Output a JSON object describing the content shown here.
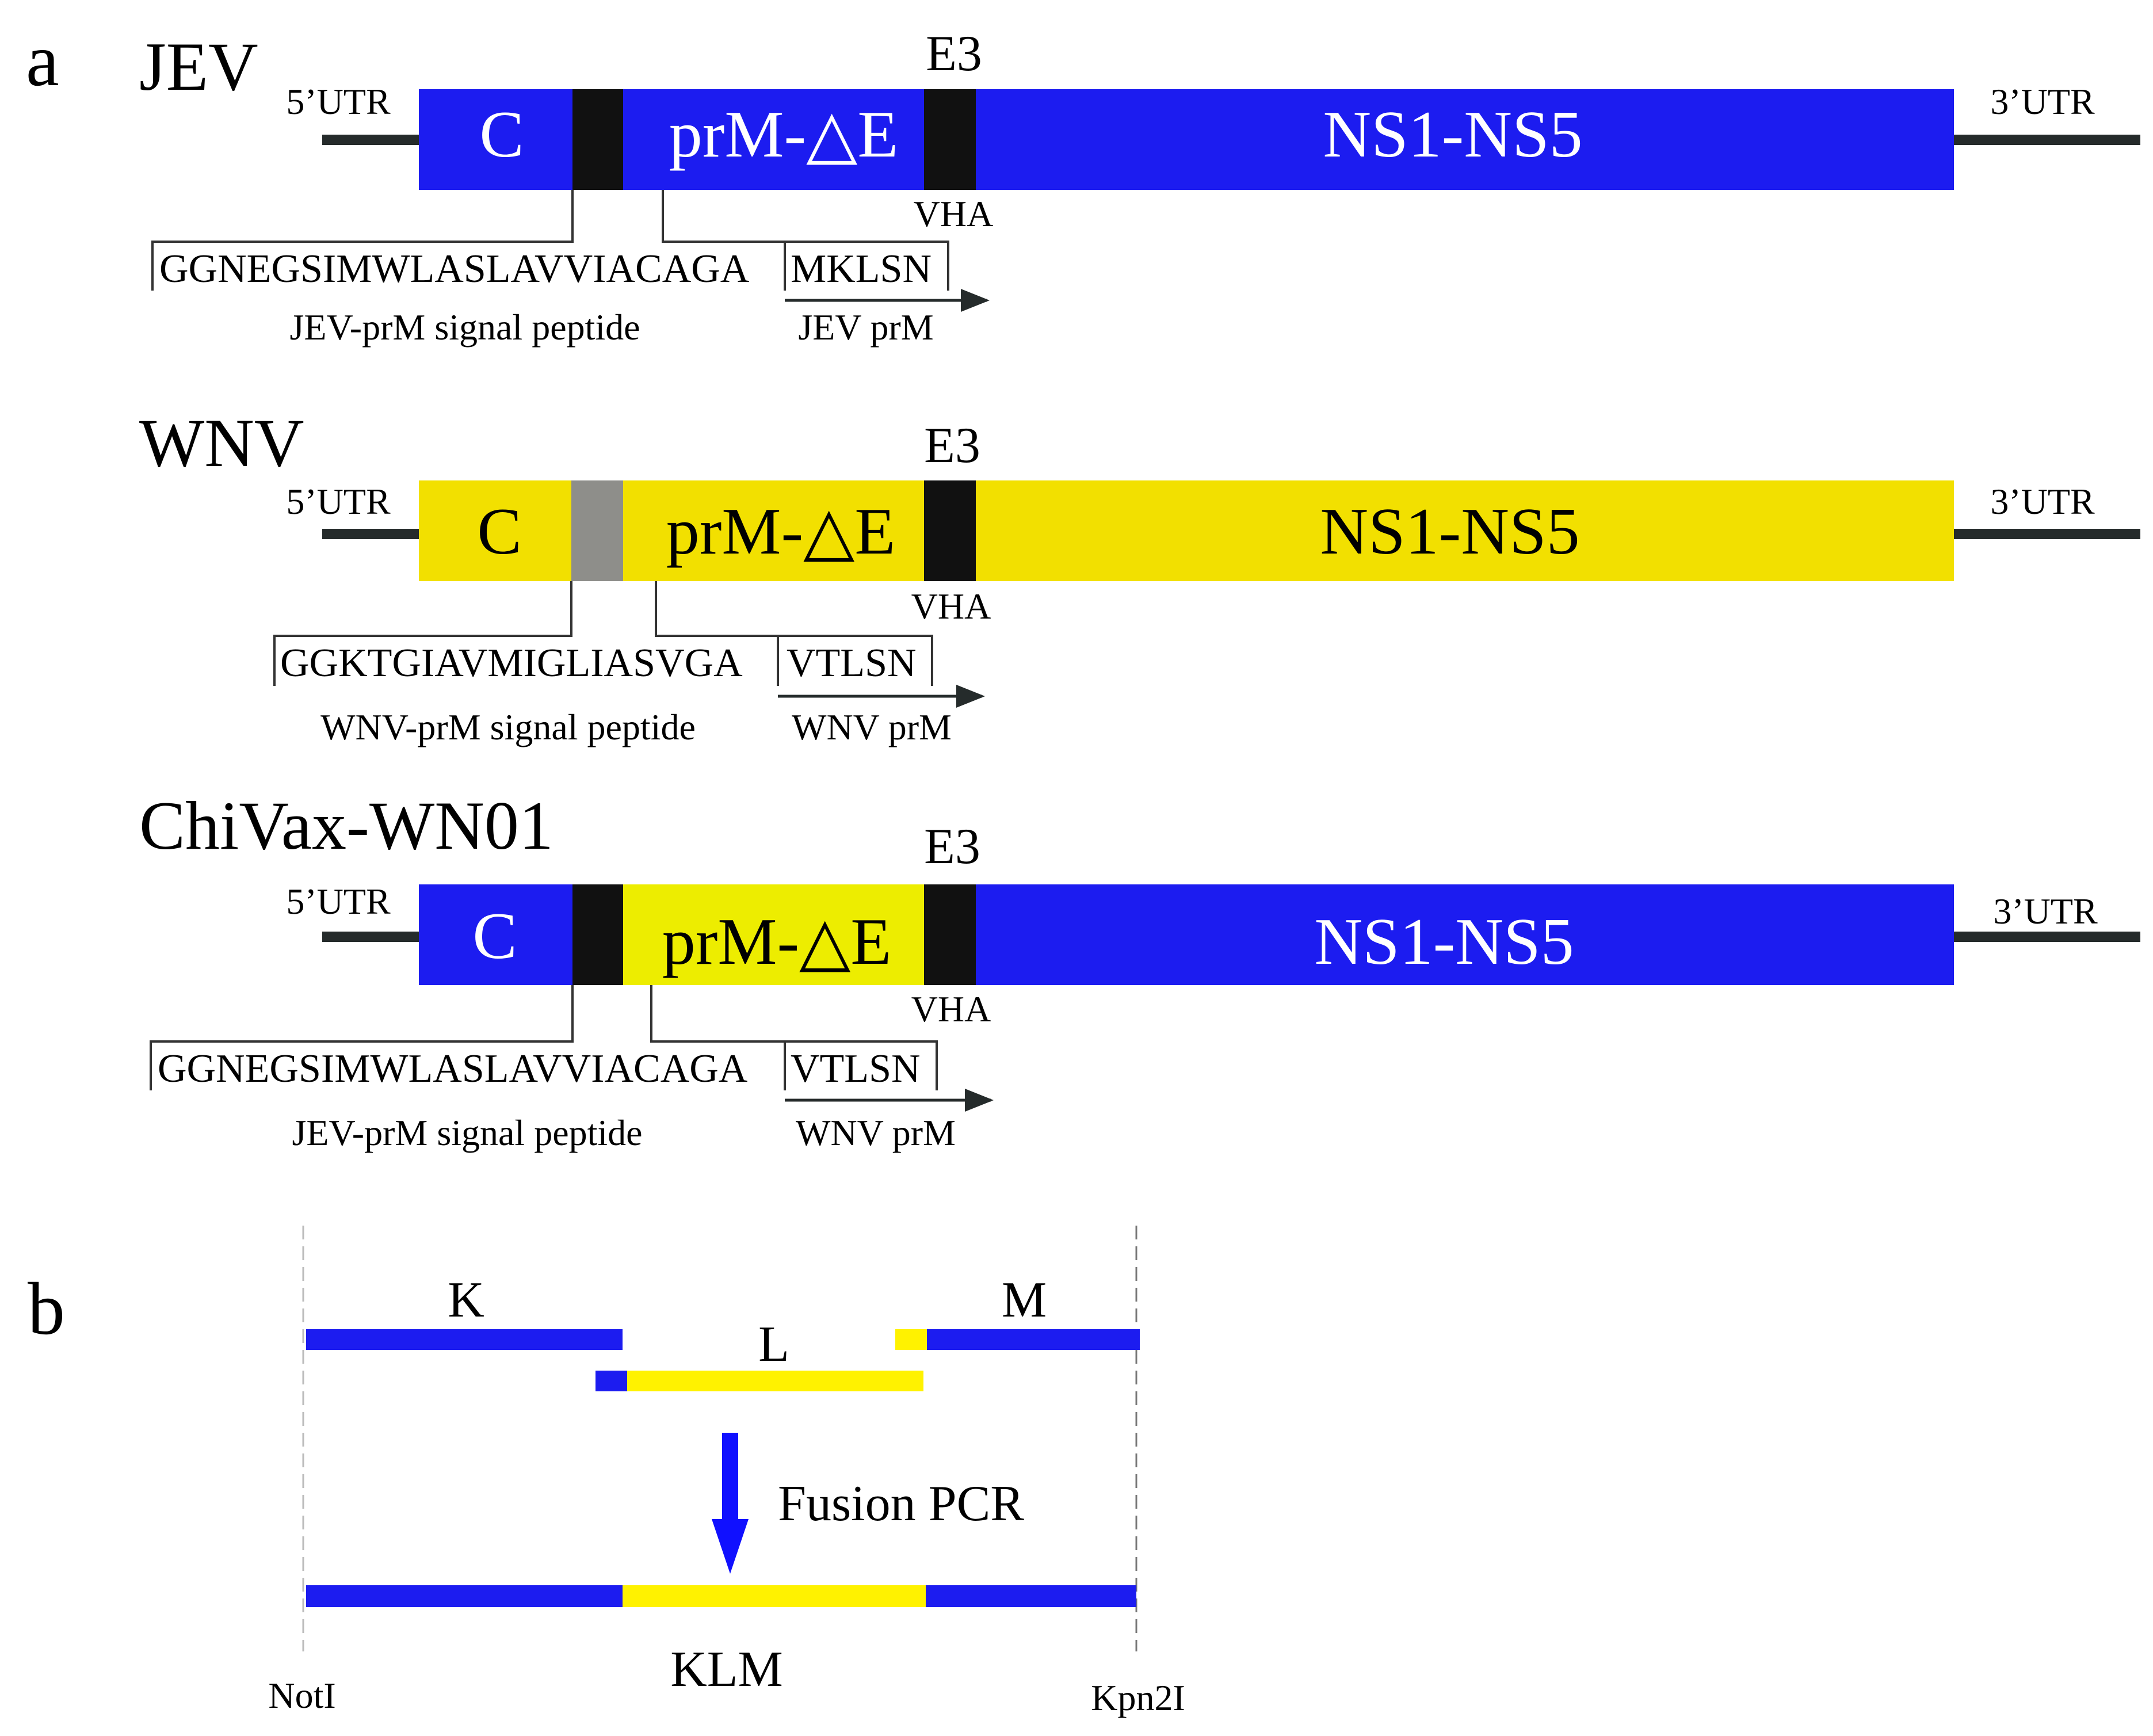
{
  "colors": {
    "jev_blue": "#1c1cf0",
    "wnv_yellow": "#f2e000",
    "chimera_yellow": "#eded00",
    "black_segment": "#111111",
    "gray_segment": "#8e8e8a",
    "utr_line": "#252b2b",
    "fusion_arrow": "#1010ff",
    "klm_yellow": "#fff200"
  },
  "panel_a": {
    "letter": "a",
    "constructs": [
      {
        "name": "JEV",
        "utr5": "5’UTR",
        "utr3": "3’UTR",
        "c_label": "C",
        "prm_label": "prM-△E",
        "e3_label": "E3",
        "vha_label": "VHA",
        "ns_label": "NS1-NS5",
        "signal_seq": "GGNEGSIMWLASLAVVIACAGA",
        "prm_seq": "MKLSN",
        "signal_label": "JEV-prM signal peptide",
        "prm_protein_label": "JEV prM"
      },
      {
        "name": "WNV",
        "utr5": "5’UTR",
        "utr3": "3’UTR",
        "c_label": "C",
        "prm_label": "prM-△E",
        "e3_label": "E3",
        "vha_label": "VHA",
        "ns_label": "NS1-NS5",
        "signal_seq": "GGKTGIAVMIGLIASVGA",
        "prm_seq": "VTLSN",
        "signal_label": "WNV-prM signal peptide",
        "prm_protein_label": "WNV prM"
      },
      {
        "name": "ChiVax-WN01",
        "utr5": "5’UTR",
        "utr3": "3’UTR",
        "c_label": "C",
        "prm_label": "prM-△E",
        "e3_label": "E3",
        "vha_label": "VHA",
        "ns_label": "NS1-NS5",
        "signal_seq": "GGNEGSIMWLASLAVVIACAGA",
        "prm_seq": "VTLSN",
        "signal_label": "JEV-prM signal peptide",
        "prm_protein_label": "WNV prM"
      }
    ]
  },
  "panel_b": {
    "letter": "b",
    "fragment_k": "K",
    "fragment_l": "L",
    "fragment_m": "M",
    "process_label": "Fusion PCR",
    "product_label": "KLM",
    "site_left": "NotI",
    "site_right": "Kpn2I"
  }
}
